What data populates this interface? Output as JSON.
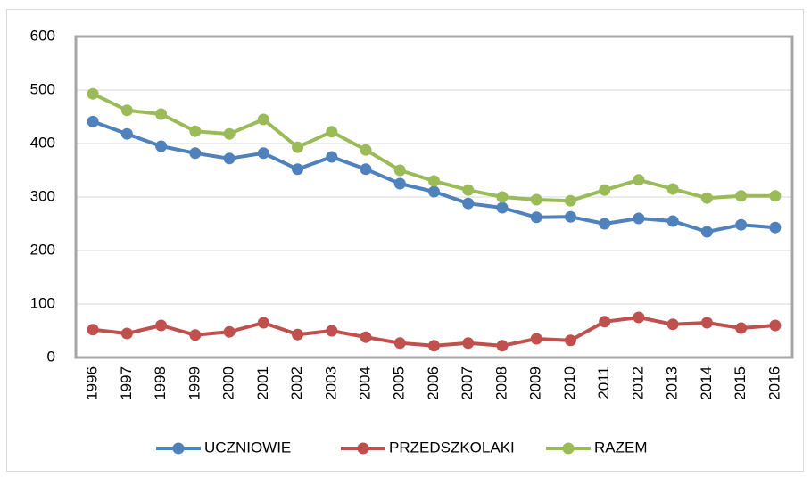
{
  "chart_data": {
    "type": "line",
    "categories": [
      "1996",
      "1997",
      "1998",
      "1999",
      "2000",
      "2001",
      "2002",
      "2003",
      "2004",
      "2005",
      "2006",
      "2007",
      "2008",
      "2009",
      "2010",
      "2011",
      "2012",
      "2013",
      "2014",
      "2015",
      "2016"
    ],
    "series": [
      {
        "name": "UCZNIOWIE",
        "color": "#4f81bd",
        "values": [
          441,
          418,
          395,
          382,
          372,
          382,
          352,
          375,
          352,
          325,
          310,
          288,
          280,
          262,
          263,
          250,
          260,
          255,
          235,
          248,
          243
        ]
      },
      {
        "name": "PRZEDSZKOLAKI",
        "color": "#c0504d",
        "values": [
          52,
          45,
          60,
          42,
          48,
          65,
          43,
          50,
          38,
          27,
          22,
          27,
          22,
          35,
          32,
          67,
          75,
          62,
          65,
          55,
          60
        ]
      },
      {
        "name": "RAZEM",
        "color": "#9bbb59",
        "values": [
          493,
          462,
          455,
          423,
          418,
          445,
          393,
          422,
          388,
          350,
          330,
          313,
          300,
          295,
          293,
          313,
          332,
          315,
          298,
          302,
          302
        ]
      }
    ],
    "ylim": [
      0,
      600
    ],
    "yticks": [
      0,
      100,
      200,
      300,
      400,
      500,
      600
    ],
    "grid": true,
    "legend": "bottom"
  }
}
